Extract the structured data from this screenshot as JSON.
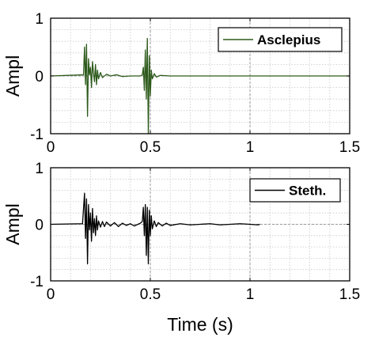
{
  "chart_data": [
    {
      "type": "line",
      "title": "",
      "xlabel": "",
      "ylabel": "Ampl",
      "xlim": [
        0,
        1.5
      ],
      "ylim": [
        -1,
        1
      ],
      "xticks": [
        0,
        0.5,
        1,
        1.5
      ],
      "xtick_labels": [
        "0",
        "0.5",
        "1",
        "1.5"
      ],
      "yticks": [
        -1,
        0,
        1
      ],
      "ytick_labels": [
        "-1",
        "0",
        "1"
      ],
      "grid": true,
      "minor_grid": true,
      "legend_position": "top-right",
      "series": [
        {
          "name": "Asclepius",
          "color": "#2d5a1b",
          "x": [
            0,
            0.165,
            0.17,
            0.175,
            0.18,
            0.185,
            0.19,
            0.195,
            0.2,
            0.205,
            0.21,
            0.215,
            0.22,
            0.225,
            0.23,
            0.235,
            0.24,
            0.25,
            0.26,
            0.28,
            0.3,
            0.33,
            0.36,
            0.4,
            0.45,
            0.46,
            0.465,
            0.47,
            0.475,
            0.48,
            0.485,
            0.49,
            0.495,
            0.5,
            0.505,
            0.51,
            0.52,
            0.53,
            0.55,
            0.6,
            1.5
          ],
          "y": [
            0,
            0.02,
            0.5,
            -0.15,
            0.55,
            -0.7,
            0.3,
            0.02,
            0.15,
            -0.2,
            0.25,
            0.05,
            -0.1,
            0.2,
            -0.15,
            0.1,
            -0.05,
            0.06,
            -0.03,
            0.03,
            0.0,
            0.02,
            -0.01,
            0.0,
            0.0,
            0.02,
            0.15,
            -0.25,
            0.45,
            -0.4,
            0.65,
            -1.0,
            0.35,
            -0.35,
            0.1,
            -0.05,
            0.04,
            -0.02,
            0.01,
            0.0,
            0.0
          ]
        }
      ]
    },
    {
      "type": "line",
      "title": "",
      "xlabel": "Time (s)",
      "ylabel": "Ampl",
      "xlim": [
        0,
        1.5
      ],
      "ylim": [
        -1,
        1
      ],
      "xticks": [
        0,
        0.5,
        1,
        1.5
      ],
      "xtick_labels": [
        "0",
        "0.5",
        "1",
        "1.5"
      ],
      "yticks": [
        -1,
        0,
        1
      ],
      "ytick_labels": [
        "-1",
        "0",
        "1"
      ],
      "grid": true,
      "minor_grid": true,
      "legend_position": "top-right",
      "series": [
        {
          "name": "Steth.",
          "color": "#000000",
          "x": [
            0,
            0.16,
            0.17,
            0.175,
            0.18,
            0.185,
            0.19,
            0.195,
            0.2,
            0.205,
            0.21,
            0.215,
            0.22,
            0.225,
            0.23,
            0.235,
            0.24,
            0.25,
            0.26,
            0.27,
            0.28,
            0.3,
            0.32,
            0.34,
            0.36,
            0.38,
            0.4,
            0.42,
            0.45,
            0.46,
            0.465,
            0.47,
            0.475,
            0.48,
            0.485,
            0.49,
            0.495,
            0.5,
            0.505,
            0.51,
            0.52,
            0.53,
            0.54,
            0.56,
            0.58,
            0.6,
            0.65,
            0.7,
            0.75,
            0.8,
            0.85,
            0.9,
            0.95,
            1.0,
            1.04,
            1.05
          ],
          "y": [
            0,
            0.01,
            0.55,
            -0.25,
            0.45,
            -0.7,
            0.35,
            -0.1,
            0.2,
            -0.3,
            0.28,
            -0.15,
            0.1,
            -0.2,
            0.15,
            -0.1,
            0.06,
            -0.05,
            0.05,
            -0.04,
            0.04,
            -0.03,
            0.03,
            -0.04,
            0.02,
            -0.02,
            0.01,
            -0.03,
            0.02,
            0.05,
            0.3,
            -0.2,
            0.35,
            -0.55,
            0.3,
            -0.7,
            0.25,
            -0.2,
            0.15,
            -0.08,
            0.06,
            -0.04,
            0.03,
            -0.03,
            0.02,
            -0.02,
            0.01,
            -0.01,
            0.0,
            0.01,
            -0.01,
            0.0,
            0.01,
            0.0,
            -0.01,
            0.0
          ]
        }
      ]
    }
  ]
}
